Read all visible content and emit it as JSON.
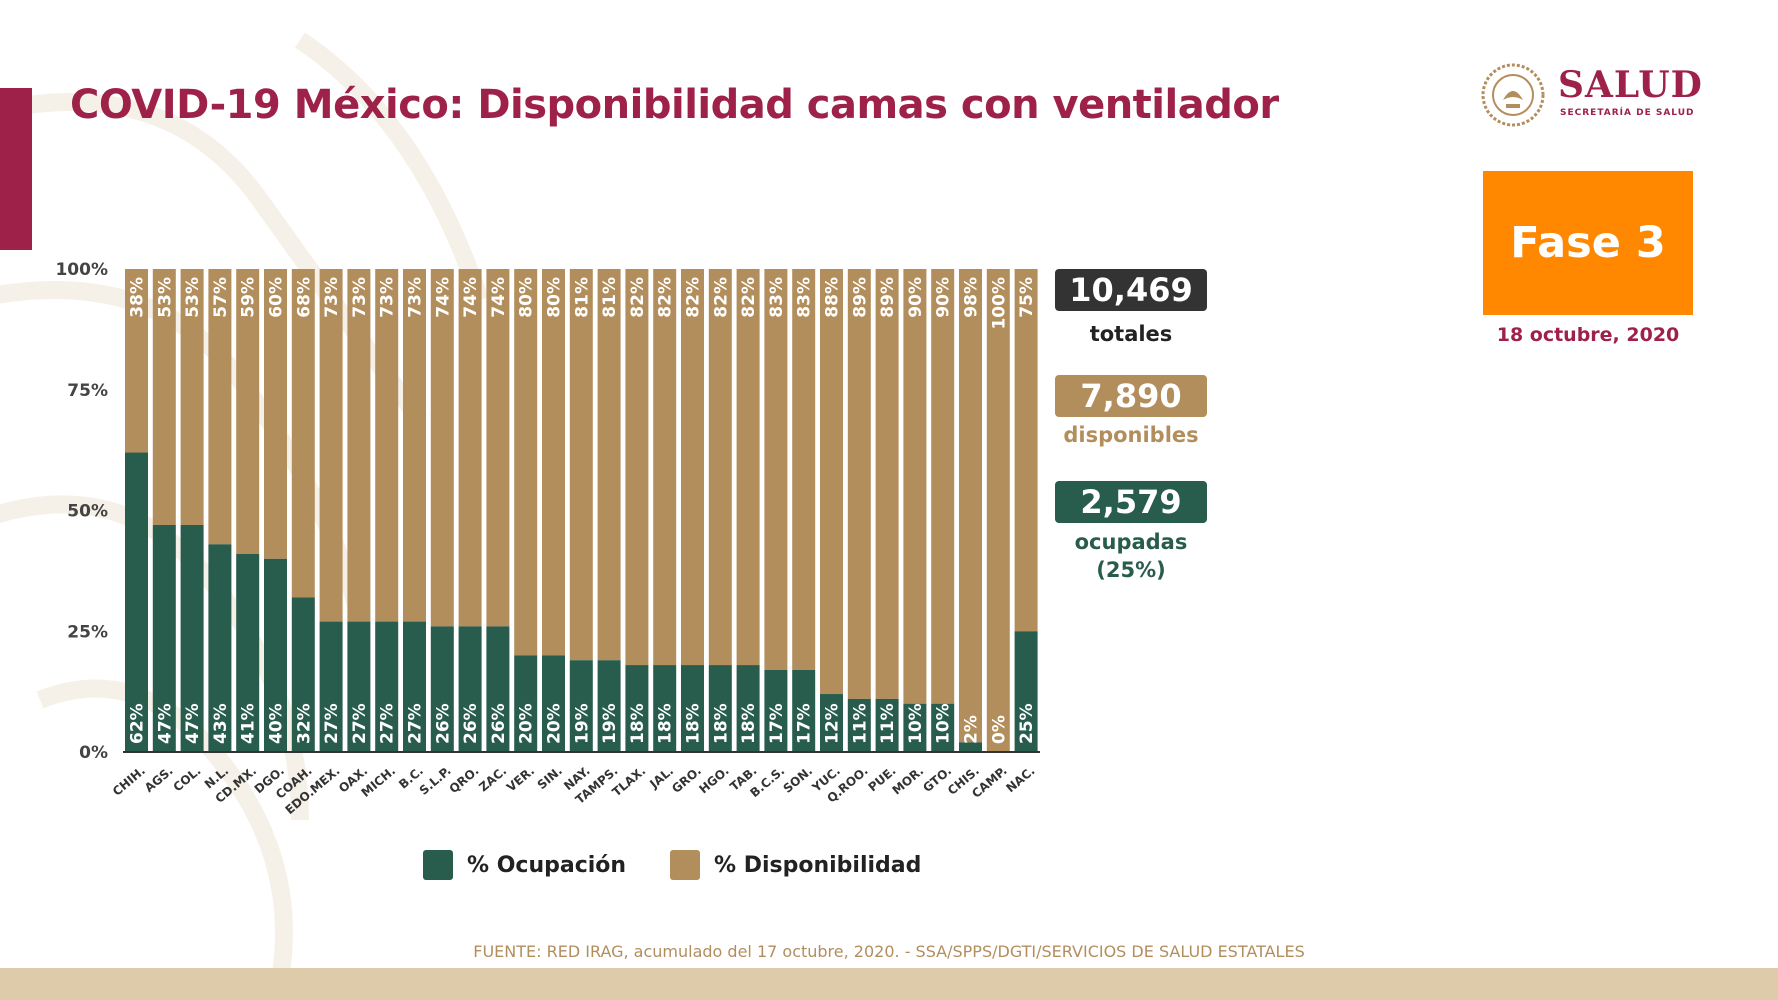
{
  "title": "COVID-19 México: Disponibilidad camas con ventilador",
  "logo": {
    "word": "SALUD",
    "subtitle": "SECRETARÍA DE SALUD"
  },
  "phase": {
    "label": "Fase 3",
    "date": "18 octubre, 2020"
  },
  "stats": {
    "totales": {
      "value": "10,469",
      "label": "totales"
    },
    "disponibles": {
      "value": "7,890",
      "label": "disponibles"
    },
    "ocupadas": {
      "value": "2,579",
      "label": "ocupadas",
      "sublabel": "(25%)"
    }
  },
  "legend": {
    "ocupacion": "% Ocupación",
    "disponibilidad": "% Disponibilidad"
  },
  "source": "FUENTE: RED IRAG, acumulado del 17 octubre, 2020. -  SSA/SPPS/DGTI/SERVICIOS DE SALUD ESTATALES",
  "colors": {
    "ocupacion": "#285c4d",
    "disponibilidad": "#b38e5d",
    "accent": "#9d2148",
    "phase": "#ff8800",
    "totales_box": "#333333"
  },
  "chart_data": {
    "type": "bar",
    "stacked": true,
    "categories": [
      "CHIH.",
      "AGS.",
      "COL.",
      "N.L.",
      "CD.MX.",
      "DGO.",
      "COAH.",
      "EDO.MEX.",
      "OAX.",
      "MICH.",
      "B.C.",
      "S.L.P.",
      "QRO.",
      "ZAC.",
      "VER.",
      "SIN.",
      "NAY.",
      "TAMPS.",
      "TLAX.",
      "JAL.",
      "GRO.",
      "HGO.",
      "TAB.",
      "B.C.S.",
      "SON.",
      "YUC.",
      "Q.ROO.",
      "PUE.",
      "MOR.",
      "GTO.",
      "CHIS.",
      "CAMP.",
      "NAC."
    ],
    "series": [
      {
        "name": "% Ocupación",
        "values": [
          62,
          47,
          47,
          43,
          41,
          40,
          32,
          27,
          27,
          27,
          27,
          26,
          26,
          26,
          20,
          20,
          19,
          19,
          18,
          18,
          18,
          18,
          18,
          17,
          17,
          12,
          11,
          11,
          10,
          10,
          2,
          0,
          25
        ]
      },
      {
        "name": "% Disponibilidad",
        "values": [
          38,
          53,
          53,
          57,
          59,
          60,
          68,
          73,
          73,
          73,
          73,
          74,
          74,
          74,
          80,
          80,
          81,
          81,
          82,
          82,
          82,
          82,
          82,
          83,
          83,
          88,
          89,
          89,
          90,
          90,
          98,
          100,
          75
        ]
      }
    ],
    "y_ticks": [
      "0%",
      "25%",
      "50%",
      "75%",
      "100%"
    ],
    "ylim": [
      0,
      100
    ],
    "grid": false,
    "legend_position": "bottom"
  }
}
